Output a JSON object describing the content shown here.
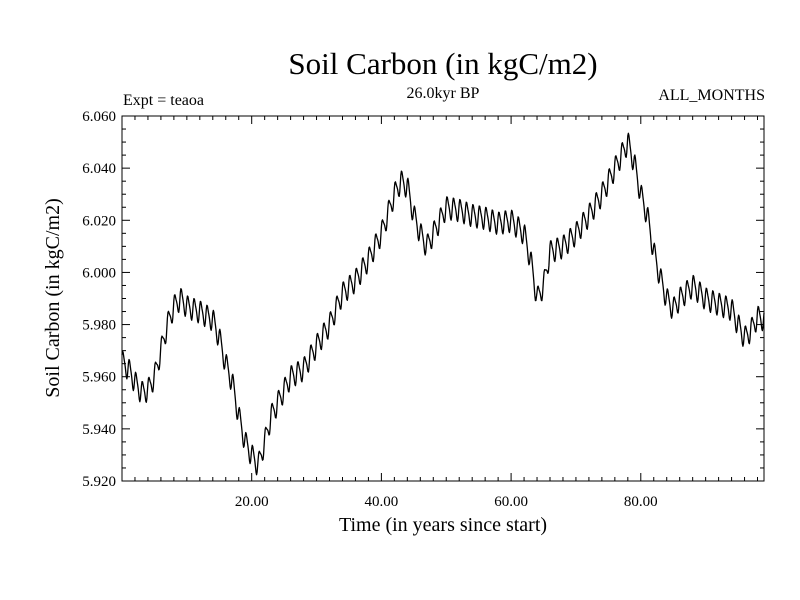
{
  "chart_data": {
    "type": "line",
    "title": "Soil Carbon (in kgC/m2)",
    "subtitle": "26.0kyr BP",
    "left_annotation": "Expt = teaoa",
    "right_annotation": "ALL_MONTHS",
    "xlabel": "Time (in years since start)",
    "ylabel": "Soil Carbon (in kgC/m2)",
    "xlim": [
      0,
      99
    ],
    "ylim": [
      5.92,
      6.06
    ],
    "x_ticks": [
      20,
      40,
      60,
      80
    ],
    "x_tick_labels": [
      "20.00",
      "40.00",
      "60.00",
      "80.00"
    ],
    "y_ticks": [
      5.92,
      5.94,
      5.96,
      5.98,
      6.0,
      6.02,
      6.04,
      6.06
    ],
    "y_tick_labels": [
      "5.920",
      "5.940",
      "5.960",
      "5.980",
      "6.000",
      "6.020",
      "6.040",
      "6.060"
    ],
    "line_color": "#000000",
    "seasonal_amplitude": 0.004,
    "trend": {
      "x": [
        0,
        1,
        2,
        3,
        4,
        5,
        6,
        7,
        8,
        9,
        10,
        12,
        14,
        15,
        16,
        17,
        18,
        19,
        20,
        21,
        22,
        23,
        24,
        25,
        26,
        28,
        30,
        32,
        34,
        36,
        38,
        40,
        42,
        43,
        44,
        45,
        46,
        47,
        48,
        50,
        52,
        54,
        56,
        58,
        60,
        62,
        63,
        64,
        65,
        66,
        68,
        70,
        72,
        74,
        76,
        77,
        78,
        79,
        80,
        81,
        82,
        83,
        84,
        85,
        86,
        88,
        90,
        92,
        94,
        95,
        96,
        97,
        98,
        99
      ],
      "y": [
        5.966,
        5.963,
        5.958,
        5.954,
        5.955,
        5.96,
        5.97,
        5.98,
        5.987,
        5.99,
        5.987,
        5.985,
        5.982,
        5.975,
        5.965,
        5.958,
        5.945,
        5.935,
        5.93,
        5.926,
        5.935,
        5.945,
        5.95,
        5.955,
        5.96,
        5.963,
        5.972,
        5.98,
        5.992,
        5.997,
        6.005,
        6.015,
        6.03,
        6.035,
        6.033,
        6.022,
        6.015,
        6.01,
        6.015,
        6.025,
        6.024,
        6.022,
        6.021,
        6.019,
        6.02,
        6.015,
        6.005,
        5.99,
        5.995,
        6.008,
        6.01,
        6.015,
        6.022,
        6.03,
        6.04,
        6.045,
        6.05,
        6.042,
        6.03,
        6.022,
        6.008,
        5.998,
        5.99,
        5.986,
        5.99,
        5.995,
        5.99,
        5.988,
        5.986,
        5.98,
        5.975,
        5.978,
        5.983,
        5.982
      ]
    }
  }
}
